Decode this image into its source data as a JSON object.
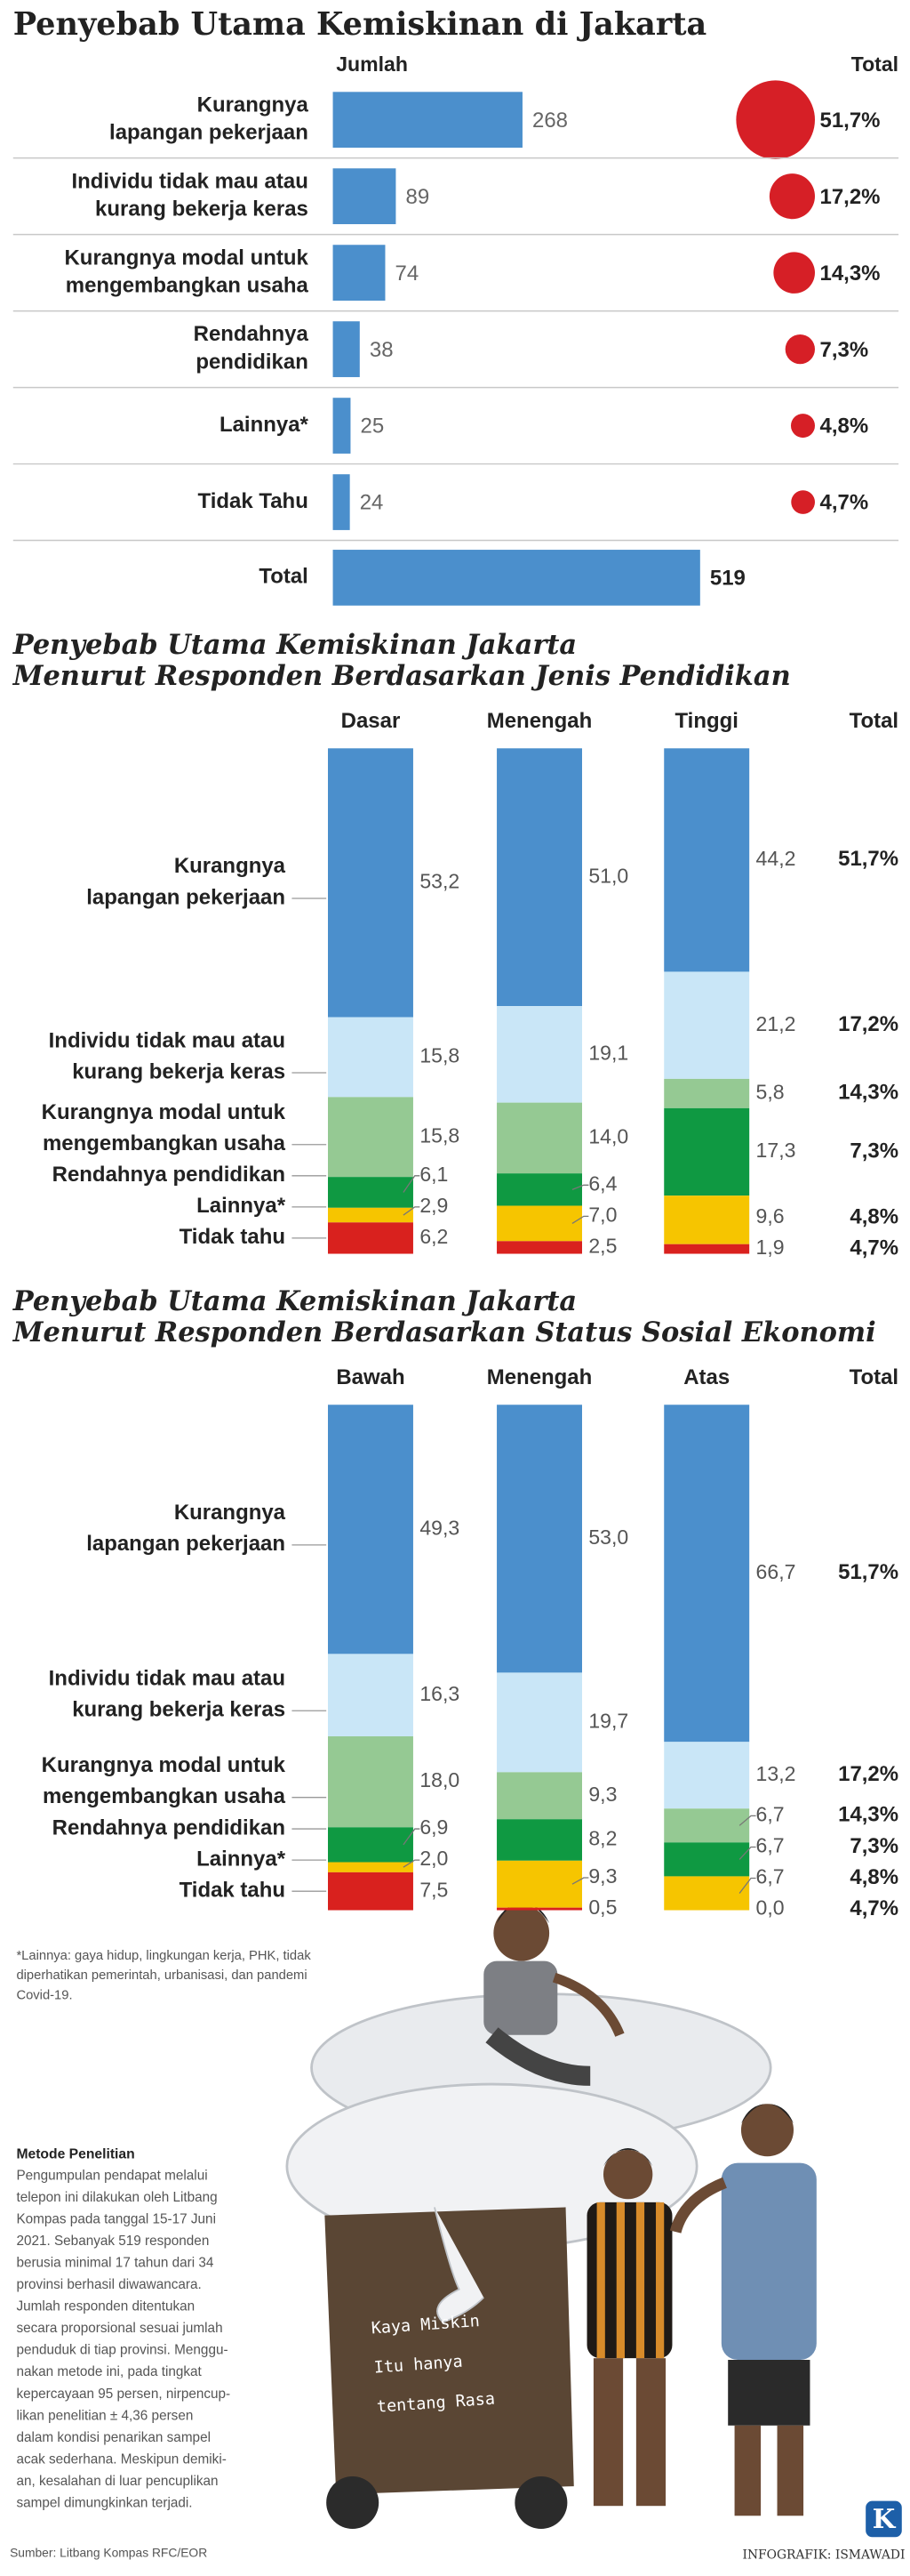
{
  "chart_data": [
    {
      "type": "bar",
      "orientation": "horizontal",
      "title": "Penyebab Utama Kemiskinan di Jakarta",
      "value_header": "Jumlah",
      "share_header": "Total",
      "categories": [
        [
          "Kurangnya",
          "lapangan pekerjaan"
        ],
        [
          "Individu tidak mau atau",
          "kurang bekerja keras"
        ],
        [
          "Kurangnya modal untuk",
          "mengembangkan usaha"
        ],
        [
          "Rendahnya",
          "pendidikan"
        ],
        "Lainnya*",
        "Tidak Tahu"
      ],
      "values": [
        268,
        89,
        74,
        38,
        25,
        24
      ],
      "color": "#4b8fcc",
      "shares": [
        51.7,
        17.2,
        14.3,
        7.3,
        4.8,
        4.7
      ],
      "share_labels": [
        "51,7%",
        "17,2%",
        "14,3%",
        "7,3%",
        "4,8%",
        "4,7%"
      ],
      "share_color": "#d61f26",
      "total": {
        "label": "Total",
        "value": 519
      }
    },
    {
      "type": "stacked_bar",
      "title": "Penyebab Utama Kemiskinan Jakarta",
      "subtitle": "Menurut Responden Berdasarkan Jenis Pendidikan",
      "categories": [
        "Dasar",
        "Menengah",
        "Tinggi"
      ],
      "series": [
        {
          "name": [
            "Kurangnya",
            "lapangan pekerjaan"
          ],
          "color": "#4b8fcc",
          "values": [
            53.2,
            51.0,
            44.2
          ],
          "value_labels": [
            "53,2",
            "51,0",
            "44,2"
          ]
        },
        {
          "name": [
            "Individu tidak mau atau",
            "kurang bekerja keras"
          ],
          "color": "#c9e6f7",
          "values": [
            15.8,
            19.1,
            21.2
          ],
          "value_labels": [
            "15,8",
            "19,1",
            "21,2"
          ]
        },
        {
          "name": [
            "Kurangnya modal untuk",
            "mengembangkan usaha"
          ],
          "color": "#95c993",
          "values": [
            15.8,
            14.0,
            5.8
          ],
          "value_labels": [
            "15,8",
            "14,0",
            "5,8"
          ]
        },
        {
          "name": [
            "Rendahnya pendidikan"
          ],
          "color": "#0f9942",
          "values": [
            6.1,
            6.4,
            17.3
          ],
          "value_labels": [
            "6,1",
            "6,4",
            "17,3"
          ]
        },
        {
          "name": [
            "Lainnya*"
          ],
          "color": "#f6c500",
          "values": [
            2.9,
            7.0,
            9.6
          ],
          "value_labels": [
            "2,9",
            "7,0",
            "9,6"
          ]
        },
        {
          "name": [
            "Tidak tahu"
          ],
          "color": "#d9211e",
          "values": [
            6.2,
            2.5,
            1.9
          ],
          "value_labels": [
            "6,2",
            "2,5",
            "1,9"
          ]
        }
      ],
      "total": {
        "header": "Total",
        "values": [
          51.7,
          17.2,
          14.3,
          7.3,
          4.8,
          4.7
        ],
        "value_labels": [
          "51,7%",
          "17,2%",
          "14,3%",
          "7,3%",
          "4,8%",
          "4,7%"
        ]
      }
    },
    {
      "type": "stacked_bar",
      "title": "Penyebab Utama Kemiskinan Jakarta",
      "subtitle": "Menurut Responden Berdasarkan Status Sosial  Ekonomi",
      "categories": [
        "Bawah",
        "Menengah",
        "Atas"
      ],
      "series": [
        {
          "name": [
            "Kurangnya",
            "lapangan pekerjaan"
          ],
          "color": "#4b8fcc",
          "values": [
            49.3,
            53.0,
            66.7
          ],
          "value_labels": [
            "49,3",
            "53,0",
            "66,7"
          ]
        },
        {
          "name": [
            "Individu tidak mau atau",
            "kurang bekerja keras"
          ],
          "color": "#c9e6f7",
          "values": [
            16.3,
            19.7,
            13.2
          ],
          "value_labels": [
            "16,3",
            "19,7",
            "13,2"
          ]
        },
        {
          "name": [
            "Kurangnya modal untuk",
            "mengembangkan usaha"
          ],
          "color": "#95c993",
          "values": [
            18.0,
            9.3,
            6.7
          ],
          "value_labels": [
            "18,0",
            "9,3",
            "6,7"
          ]
        },
        {
          "name": [
            "Rendahnya pendidikan"
          ],
          "color": "#0f9942",
          "values": [
            6.9,
            8.2,
            6.7
          ],
          "value_labels": [
            "6,9",
            "8,2",
            "6,7"
          ]
        },
        {
          "name": [
            "Lainnya*"
          ],
          "color": "#f6c500",
          "values": [
            2.0,
            9.3,
            6.7
          ],
          "value_labels": [
            "2,0",
            "9,3",
            "6,7"
          ]
        },
        {
          "name": [
            "Tidak tahu"
          ],
          "color": "#d9211e",
          "values": [
            7.5,
            0.5,
            0.0
          ],
          "value_labels": [
            "7,5",
            "0,5",
            "0,0"
          ]
        }
      ],
      "total": {
        "header": "Total",
        "values": [
          51.7,
          17.2,
          14.3,
          7.3,
          4.8,
          4.7
        ],
        "value_labels": [
          "51,7%",
          "17,2%",
          "14,3%",
          "7,3%",
          "4,8%",
          "4,7%"
        ]
      }
    }
  ],
  "footnote": [
    "*Lainnya: gaya hidup, lingkungan kerja, PHK, tidak",
    "diperhatikan pemerintah, urbanisasi, dan pandemi",
    "Covid-19."
  ],
  "method": {
    "title": "Metode Penelitian",
    "lines": [
      "Pengumpulan pendapat melalui",
      "telepon ini dilakukan oleh Litbang",
      "Kompas pada tanggal 15-17 Juni",
      "2021. Sebanyak 519 responden",
      "berusia minimal 17 tahun dari 34",
      "provinsi berhasil diwawancara.",
      "Jumlah responden ditentukan",
      "secara proporsional sesuai jumlah",
      "penduduk di tiap provinsi. Menggu-",
      "nakan metode ini, pada tingkat",
      "kepercayaan 95 persen, nirpencup-",
      "likan penelitian ± 4,36 persen",
      "dalam kondisi penarikan sampel",
      "acak sederhana. Meskipun demiki-",
      "an, kesalahan di luar pencuplikan",
      "sampel dimungkinkan terjadi."
    ]
  },
  "illustration": [
    "Kaya Miskin",
    "Itu hanya",
    "tentang Rasa"
  ],
  "source": "Sumber: Litbang Kompas RFC/EOR",
  "credit": "INFOGRAFIK: ISMAWADI",
  "logo": "K"
}
